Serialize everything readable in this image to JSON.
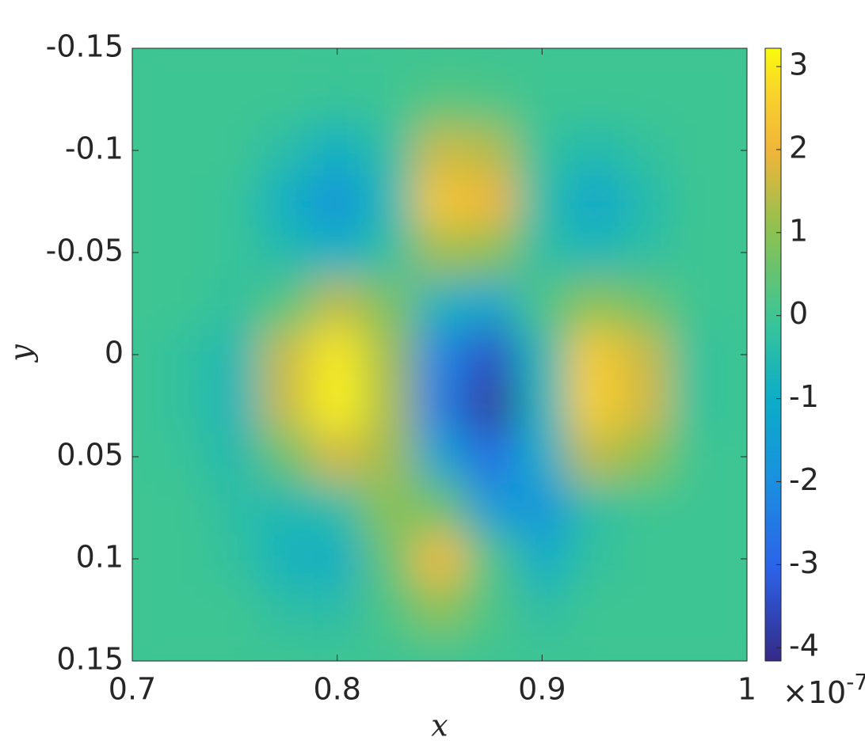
{
  "chart_data": {
    "type": "heatmap",
    "xlabel": "x",
    "ylabel": "y",
    "x": [
      0.7,
      0.725,
      0.75,
      0.775,
      0.8,
      0.825,
      0.85,
      0.875,
      0.9,
      0.925,
      0.95,
      0.975,
      1.0
    ],
    "y": [
      -0.15,
      -0.125,
      -0.1,
      -0.075,
      -0.05,
      -0.025,
      0,
      0.025,
      0.05,
      0.075,
      0.1,
      0.125,
      0.15
    ],
    "z": [
      [
        0,
        0,
        0,
        0,
        0,
        0,
        0,
        0,
        0,
        0,
        0,
        0,
        0
      ],
      [
        0,
        0,
        0,
        0,
        -0.1,
        0,
        0.3,
        0.2,
        0,
        0,
        0,
        0,
        0
      ],
      [
        0,
        0,
        0,
        -0.4,
        -0.9,
        -0.3,
        1.6,
        1.4,
        -0.2,
        -0.5,
        -0.2,
        0,
        0
      ],
      [
        0,
        0,
        -0.1,
        -0.9,
        -1.8,
        -0.6,
        2.4,
        2.0,
        -0.4,
        -1.2,
        -0.5,
        0,
        0
      ],
      [
        0,
        0,
        -0.1,
        -0.5,
        -0.9,
        -0.3,
        1.2,
        1.0,
        -0.3,
        -0.6,
        -0.3,
        0,
        0
      ],
      [
        0,
        0,
        -0.2,
        0.3,
        1.5,
        0.8,
        -0.8,
        -1.2,
        0.2,
        1.0,
        0.6,
        0,
        0
      ],
      [
        0,
        -0.2,
        -0.6,
        1.6,
        3.0,
        1.2,
        -2.2,
        -3.4,
        -0.6,
        2.5,
        1.6,
        -0.2,
        0
      ],
      [
        0,
        -0.2,
        -0.7,
        1.6,
        3.1,
        1.3,
        -2.4,
        -3.9,
        -0.8,
        2.6,
        1.7,
        -0.2,
        0
      ],
      [
        0,
        -0.1,
        -0.5,
        0.6,
        1.7,
        1.2,
        -1.3,
        -2.8,
        -1.0,
        1.5,
        1.0,
        0,
        0
      ],
      [
        0,
        0,
        -0.3,
        -0.6,
        -0.4,
        1.0,
        0.6,
        -1.6,
        -1.8,
        -0.3,
        0,
        0,
        0
      ],
      [
        0,
        0,
        -0.2,
        -0.8,
        -0.9,
        0.5,
        2.1,
        0.2,
        -1.0,
        -0.2,
        0,
        0,
        0
      ],
      [
        0,
        0,
        0,
        -0.3,
        -0.4,
        0.2,
        1.0,
        0.2,
        -0.3,
        0,
        0,
        0,
        0
      ],
      [
        0,
        0,
        0,
        0,
        0,
        0,
        0,
        0,
        0,
        0,
        0,
        0,
        0
      ]
    ],
    "xlim": [
      0.7,
      1
    ],
    "xticks": [
      0.7,
      0.8,
      0.9,
      1
    ],
    "ylim": [
      -0.15,
      0.15
    ],
    "yticks": [
      -0.15,
      -0.1,
      -0.05,
      0,
      0.05,
      0.1,
      0.15
    ],
    "y_reversed": true,
    "clim": [
      -4.16,
      3.22
    ],
    "cticks": [
      -4,
      -3,
      -2,
      -1,
      0,
      1,
      2,
      3
    ],
    "colorbar_multiplier": {
      "base": "×10",
      "exponent": "-7"
    },
    "colormap": "parula"
  }
}
